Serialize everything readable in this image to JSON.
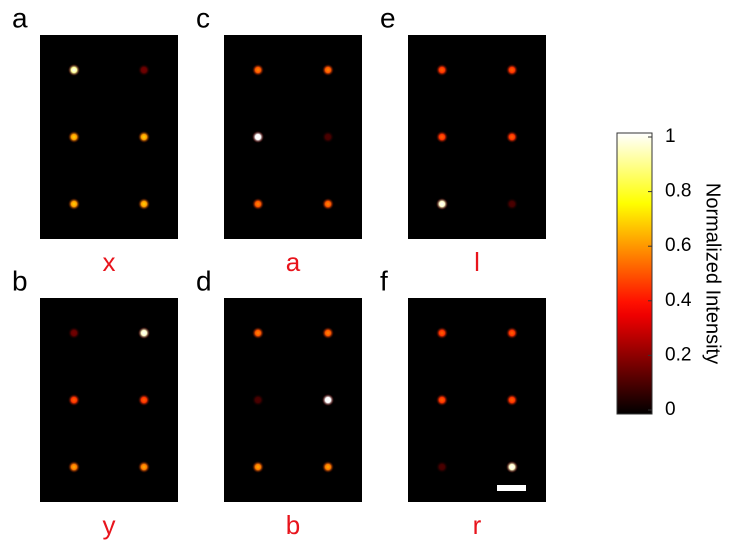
{
  "chart_data": {
    "type": "spot-map",
    "panels": [
      {
        "letter": "a",
        "caption": "x",
        "intensities": [
          [
            0.9,
            0.15
          ],
          [
            0.6,
            0.6
          ],
          [
            0.6,
            0.6
          ]
        ]
      },
      {
        "letter": "b",
        "caption": "y",
        "intensities": [
          [
            0.15,
            0.95
          ],
          [
            0.45,
            0.45
          ],
          [
            0.55,
            0.55
          ]
        ]
      },
      {
        "letter": "c",
        "caption": "a",
        "intensities": [
          [
            0.5,
            0.5
          ],
          [
            1,
            0.1
          ],
          [
            0.5,
            0.5
          ]
        ]
      },
      {
        "letter": "d",
        "caption": "b",
        "intensities": [
          [
            0.5,
            0.5
          ],
          [
            0.1,
            1
          ],
          [
            0.55,
            0.55
          ]
        ]
      },
      {
        "letter": "e",
        "caption": "l",
        "intensities": [
          [
            0.45,
            0.45
          ],
          [
            0.45,
            0.45
          ],
          [
            0.95,
            0.1
          ]
        ]
      },
      {
        "letter": "f",
        "caption": "r",
        "intensities": [
          [
            0.45,
            0.45
          ],
          [
            0.45,
            0.45
          ],
          [
            0.1,
            0.95
          ]
        ]
      }
    ],
    "colorbar": {
      "label": "Normalized Intensity",
      "lim": [
        0,
        1
      ],
      "ticks": [
        0,
        0.2,
        0.4,
        0.6,
        0.8,
        1
      ]
    }
  }
}
